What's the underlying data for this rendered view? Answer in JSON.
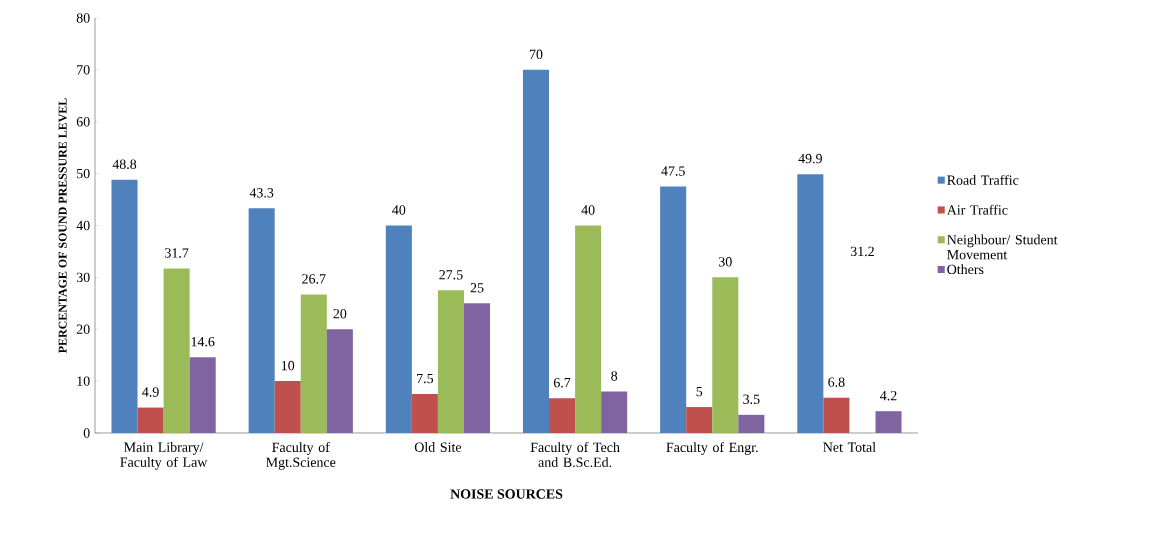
{
  "chart_data": {
    "type": "bar",
    "xlabel": "NOISE SOURCES",
    "ylabel": "PERCENTAGE OF SOUND PRESSURE LEVEL",
    "categories": [
      "Main Library/ Faculty of Law",
      "Faculty of Mgt.Science",
      "Old Site",
      "Faculty of Tech and B.Sc.Ed.",
      "Faculty of Engr.",
      "Net Total"
    ],
    "series": [
      {
        "name": "Road Traffic",
        "color": "#4f81bd",
        "values": [
          48.8,
          43.3,
          40,
          70,
          47.5,
          49.9
        ]
      },
      {
        "name": "Air Traffic",
        "color": "#c0504d",
        "values": [
          4.9,
          10,
          7.5,
          6.7,
          5,
          6.8
        ]
      },
      {
        "name": "Neighbour/ Student Movement",
        "color": "#9bbb59",
        "values": [
          31.7,
          26.7,
          27.5,
          40,
          30,
          null
        ]
      },
      {
        "name": "Others",
        "color": "#8064a2",
        "values": [
          14.6,
          20,
          25,
          8,
          3.5,
          4.2
        ]
      }
    ],
    "annotations": [
      "31.2"
    ],
    "ylim": [
      0,
      80
    ],
    "yticks": [
      0,
      10,
      20,
      30,
      40,
      50,
      60,
      70,
      80
    ],
    "data_labels": true,
    "legend": "right",
    "grid": false
  }
}
